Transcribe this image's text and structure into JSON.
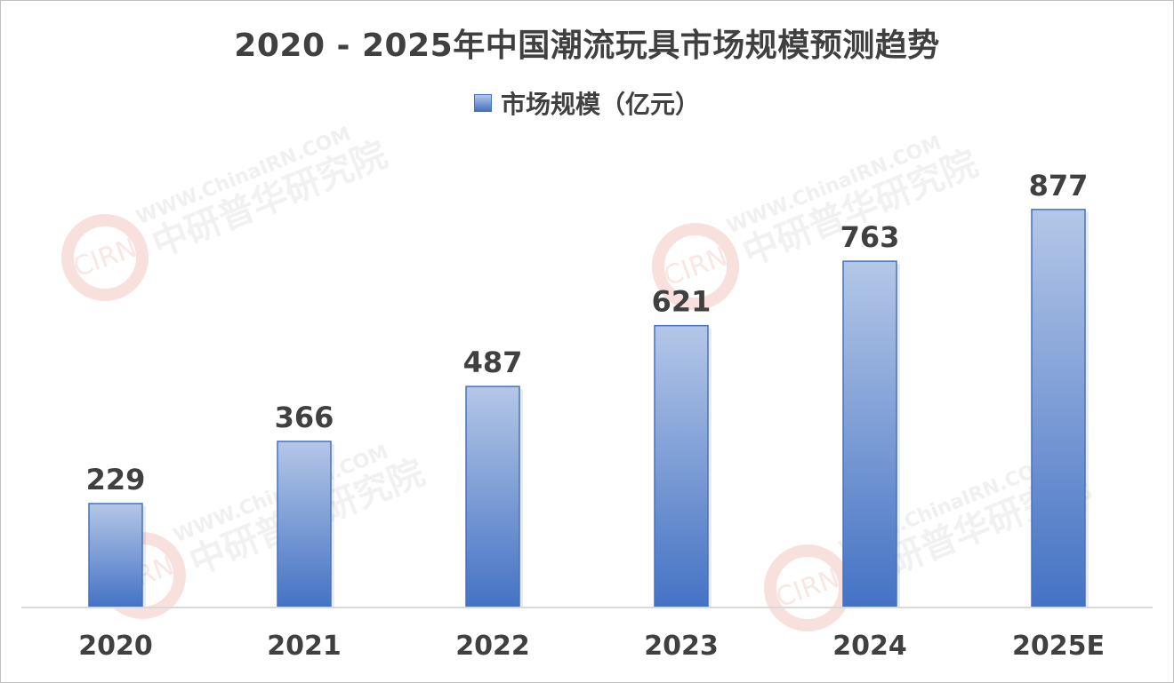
{
  "chart_data": {
    "type": "bar",
    "title": "2020 - 2025年中国潮流玩具市场规模预测趋势",
    "categories": [
      "2020",
      "2021",
      "2022",
      "2023",
      "2024",
      "2025E"
    ],
    "series": [
      {
        "name": "市场规模（亿元）",
        "values": [
          229,
          366,
          487,
          621,
          763,
          877
        ]
      }
    ],
    "data_labels": [
      "229",
      "366",
      "487",
      "621",
      "763",
      "877"
    ],
    "ylim": [
      0,
      1000
    ],
    "grid": false,
    "legend_position": "top-center",
    "colors": {
      "bar_top": "#b4c7e7",
      "bar_bottom": "#4472c4",
      "bar_border": "#4472c4",
      "text": "#404040",
      "axis": "#d9d9d9"
    }
  },
  "watermark": {
    "logo": "CIRN",
    "url": "WWW.ChinaIRN.COM",
    "name": "中研普华研究院"
  }
}
